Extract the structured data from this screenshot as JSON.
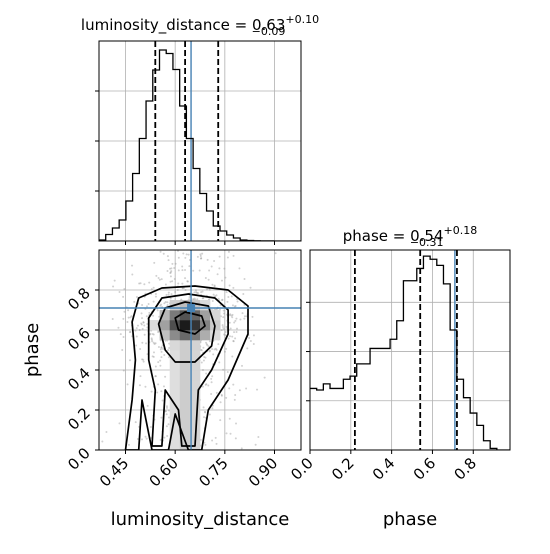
{
  "chart_data": [
    {
      "type": "histogram",
      "panel": "luminosity_distance marginal",
      "title": {
        "param": "luminosity_distance",
        "median": "0.63",
        "plus": "+0.10",
        "minus": "−0.09"
      },
      "xlim": [
        0.37,
        0.98
      ],
      "bins": {
        "start": 0.37,
        "width": 0.0203,
        "counts": [
          0.2,
          1.3,
          2.6,
          4.2,
          8.0,
          13.5,
          20.5,
          28.0,
          34.2,
          38.2,
          37.5,
          34.3,
          27.0,
          20.5,
          14.5,
          9.5,
          6.0,
          3.0,
          2.0,
          1.2,
          0.6,
          0.2,
          0.1,
          0.05,
          0.02,
          0.01,
          0.0,
          0.0,
          0.0,
          0.0
        ]
      },
      "ymax": 40,
      "quantiles": [
        0.54,
        0.63,
        0.73
      ],
      "truth": 0.648,
      "grid": true,
      "truth_color": "#4682b4"
    },
    {
      "type": "hist2d",
      "panel": "luminosity_distance vs phase",
      "xlabel": "luminosity_distance",
      "ylabel": "phase",
      "xlim": [
        0.37,
        0.98
      ],
      "ylim": [
        0.0,
        1.0
      ],
      "xticks": [
        "0.45",
        "0.60",
        "0.75",
        "0.90"
      ],
      "xtick_values": [
        0.45,
        0.6,
        0.75,
        0.9
      ],
      "yticks": [
        "0.0",
        "0.2",
        "0.4",
        "0.6",
        "0.8"
      ],
      "ytick_values": [
        0.0,
        0.2,
        0.4,
        0.6,
        0.8
      ],
      "truth": {
        "x": 0.648,
        "y": 0.71
      },
      "peak": {
        "x": 0.635,
        "y": 0.63
      },
      "contours": 4
    },
    {
      "type": "histogram",
      "panel": "phase marginal",
      "title": {
        "param": "phase",
        "median": "0.54",
        "plus": "+0.18",
        "minus": "−0.31"
      },
      "xlabel": "phase",
      "xlim": [
        0.0,
        0.98
      ],
      "xticks": [
        "0.0",
        "0.2",
        "0.4",
        "0.6",
        "0.8"
      ],
      "xtick_values": [
        0.0,
        0.2,
        0.4,
        0.6,
        0.8
      ],
      "bins": {
        "start": 0.0,
        "width": 0.0327,
        "counts": [
          20,
          19.5,
          21.5,
          20,
          20,
          23,
          24,
          28,
          28,
          33,
          33,
          33,
          36,
          42,
          55,
          55,
          59,
          63,
          62,
          60,
          54,
          39,
          23,
          17,
          12,
          8,
          3,
          0.5,
          0.0,
          0.0
        ]
      },
      "ymax": 65,
      "quantiles": [
        0.22,
        0.54,
        0.72
      ],
      "truth": 0.71,
      "grid": true,
      "truth_color": "#4682b4"
    }
  ]
}
